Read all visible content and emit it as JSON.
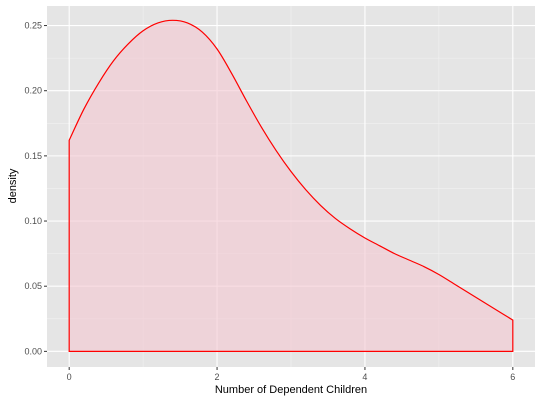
{
  "chart_data": {
    "type": "area",
    "title": "",
    "xlabel": "Number of Dependent Children",
    "ylabel": "density",
    "xlim": [
      -0.3,
      6.3
    ],
    "ylim": [
      -0.012,
      0.265
    ],
    "x_ticks": [
      0,
      2,
      4,
      6
    ],
    "x_tick_labels": [
      "0",
      "2",
      "4",
      "6"
    ],
    "y_ticks": [
      0.0,
      0.05,
      0.1,
      0.15,
      0.2,
      0.25
    ],
    "y_tick_labels": [
      "0.00",
      "0.05",
      "0.10",
      "0.15",
      "0.20",
      "0.25"
    ],
    "grid": true,
    "legend": "none",
    "series": [
      {
        "x": [
          0,
          0.2,
          0.4,
          0.6,
          0.8,
          1.0,
          1.2,
          1.4,
          1.6,
          1.8,
          2.0,
          2.2,
          2.4,
          2.6,
          2.8,
          3.0,
          3.2,
          3.4,
          3.6,
          3.8,
          4.0,
          4.2,
          4.4,
          4.6,
          4.8,
          5.0,
          5.2,
          5.4,
          5.6,
          5.8,
          6.0
        ],
        "y": [
          0.162,
          0.186,
          0.206,
          0.223,
          0.236,
          0.246,
          0.252,
          0.254,
          0.252,
          0.245,
          0.232,
          0.213,
          0.192,
          0.172,
          0.154,
          0.138,
          0.124,
          0.112,
          0.102,
          0.094,
          0.087,
          0.081,
          0.075,
          0.07,
          0.065,
          0.059,
          0.052,
          0.045,
          0.038,
          0.031,
          0.024
        ]
      }
    ],
    "colors": {
      "line": "#ff0000",
      "fill": "#f4c6d0",
      "panel": "#e5e5e5",
      "grid_major": "#ffffff",
      "grid_minor": "#f2f2f2"
    }
  }
}
